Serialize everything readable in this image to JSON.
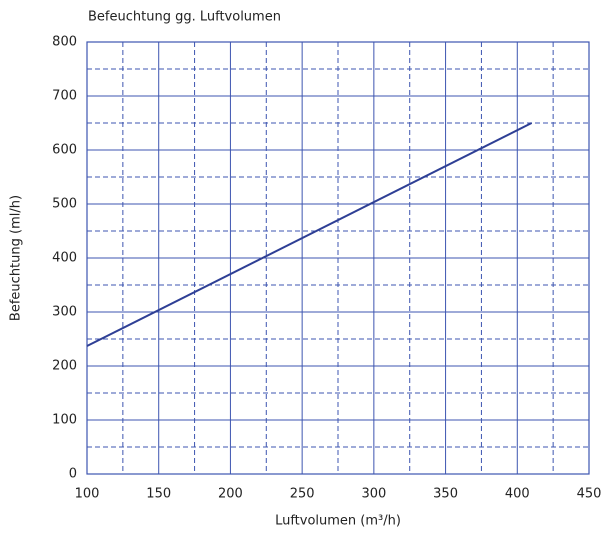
{
  "chart_data": {
    "type": "line",
    "title": "Befeuchtung gg. Luftvolumen",
    "x_label": "Luftvolumen (m³/h)",
    "y_label": "Befeuchtung (ml/h)",
    "series": [
      {
        "color": "#2e3f95",
        "x": [
          100,
          410
        ],
        "values": [
          237,
          650
        ]
      }
    ],
    "xlim": [
      100,
      450
    ],
    "xticks": [
      100,
      150,
      200,
      250,
      300,
      350,
      400,
      450
    ],
    "xminorticks": [
      125,
      175,
      225,
      275,
      325,
      375,
      425
    ],
    "ylim": [
      0,
      800
    ],
    "yticks": [
      0,
      100,
      200,
      300,
      400,
      500,
      600,
      700,
      800
    ],
    "yminorticks": [
      50,
      150,
      250,
      350,
      450,
      550,
      650,
      750
    ],
    "grid": true,
    "grid_color": "#3d55b0"
  }
}
